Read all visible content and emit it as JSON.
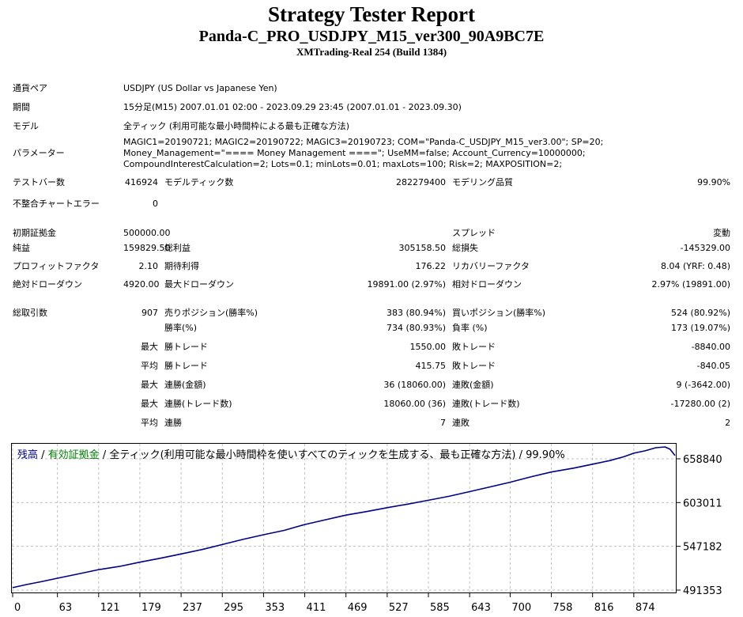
{
  "header": {
    "title": "Strategy Tester Report",
    "ea_name": "Panda-C_PRO_USDJPY_M15_ver300_90A9BC7E",
    "server": "XMTrading-Real 254 (Build 1384)"
  },
  "info": {
    "symbol_label": "通貨ペア",
    "symbol_value": "USDJPY (US Dollar vs Japanese Yen)",
    "period_label": "期間",
    "period_value": "15分足(M15) 2007.01.01 02:00 - 2023.09.29 23:45 (2007.01.01 - 2023.09.30)",
    "model_label": "モデル",
    "model_value": "全ティック (利用可能な最小時間枠による最も正確な方法)",
    "params_label": "パラメーター",
    "params_line1": "MAGIC1=20190721; MAGIC2=20190722; MAGIC3=20190723; COM=\"Panda-C_USDJPY_M15_ver3.00\"; SP=20;",
    "params_line2": "Money_Management=\"==== Money Management ====\"; UseMM=false; Account_Currency=10000000;",
    "params_line3": "CompoundInterestCalculation=2; Lots=0.1; minLots=0.01; maxLots=100; Risk=2; MAXPOSITION=2;"
  },
  "stats": {
    "bars_label": "テストバー数",
    "bars_value": "416924",
    "ticks_label": "モデルティック数",
    "ticks_value": "282279400",
    "quality_label": "モデリング品質",
    "quality_value": "99.90%",
    "mismatch_label": "不整合チャートエラー",
    "mismatch_value": "0",
    "deposit_label": "初期証拠金",
    "deposit_value": "500000.00",
    "spread_label": "スプレッド",
    "spread_value": "変動",
    "net_label": "純益",
    "net_value": "159829.50",
    "gross_profit_label": "総利益",
    "gross_profit_value": "305158.50",
    "gross_loss_label": "総損失",
    "gross_loss_value": "-145329.00",
    "pf_label": "プロフィットファクタ",
    "pf_value": "2.10",
    "expected_label": "期待利得",
    "expected_value": "176.22",
    "recovery_label": "リカバリーファクタ",
    "recovery_value": "8.04 (YRF: 0.48)",
    "abs_dd_label": "絶対ドローダウン",
    "abs_dd_value": "4920.00",
    "max_dd_label": "最大ドローダウン",
    "max_dd_value": "19891.00 (2.97%)",
    "rel_dd_label": "相対ドローダウン",
    "rel_dd_value": "2.97% (19891.00)",
    "total_trades_label": "総取引数",
    "total_trades_value": "907",
    "short_label": "売りポジション(勝率%)",
    "short_value": "383 (80.94%)",
    "long_label": "買いポジション(勝率%)",
    "long_value": "524 (80.92%)",
    "win_rate_label": "勝率(%)",
    "win_rate_value": "734 (80.93%)",
    "loss_rate_label": "負率 (%)",
    "loss_rate_value": "173 (19.07%)",
    "max1": "最大",
    "largest_win_label": "勝トレード",
    "largest_win_value": "1550.00",
    "largest_loss_label": "敗トレード",
    "largest_loss_value": "-8840.00",
    "avg1": "平均",
    "avg_win_label": "勝トレード",
    "avg_win_value": "415.75",
    "avg_loss_label": "敗トレード",
    "avg_loss_value": "-840.05",
    "max2": "最大",
    "max_consec_wins_label": "連勝(金額)",
    "max_consec_wins_value": "36 (18060.00)",
    "max_consec_losses_label": "連敗(金額)",
    "max_consec_losses_value": "9 (-3642.00)",
    "max3": "最大",
    "max_consec_profit_label": "連勝(トレード数)",
    "max_consec_profit_value": "18060.00 (36)",
    "max_consec_loss_label": "連敗(トレード数)",
    "max_consec_loss_value": "-17280.00 (2)",
    "avg2": "平均",
    "avg_consec_wins_label": "連勝",
    "avg_consec_wins_value": "7",
    "avg_consec_losses_label": "連敗",
    "avg_consec_losses_value": "2"
  },
  "chart_title": {
    "part_balance": "残高",
    "sep1": " / ",
    "part_equity": "有効証拠金",
    "sep2": " / ",
    "part_model": "全ティック(利用可能な最小時間枠を使いすべてのティックを生成する、最も正確な方法) / 99.90%"
  },
  "colors": {
    "balance": "#00008b",
    "equity": "#008000",
    "grid": "#c0c0c0"
  },
  "chart_data": {
    "type": "line",
    "title": "残高 / 有効証拠金 / 全ティック(利用可能な最小時間枠を使いすべてのティックを生成する、最も正確な方法) / 99.90%",
    "xlabel": "",
    "ylabel": "",
    "x_ticks": [
      0,
      63,
      121,
      179,
      237,
      295,
      353,
      411,
      469,
      527,
      585,
      643,
      700,
      758,
      816,
      874
    ],
    "y_ticks": [
      491353,
      547182,
      603011,
      658840
    ],
    "xlim": [
      0,
      932
    ],
    "ylim": [
      491353,
      677000
    ],
    "grid": true,
    "series": [
      {
        "name": "残高",
        "points": [
          [
            0,
            494500
          ],
          [
            20,
            498500
          ],
          [
            40,
            502000
          ],
          [
            63,
            506500
          ],
          [
            90,
            511500
          ],
          [
            121,
            517500
          ],
          [
            150,
            521500
          ],
          [
            179,
            527000
          ],
          [
            208,
            532000
          ],
          [
            237,
            537500
          ],
          [
            266,
            543000
          ],
          [
            295,
            549500
          ],
          [
            324,
            556000
          ],
          [
            353,
            562000
          ],
          [
            382,
            567500
          ],
          [
            411,
            575000
          ],
          [
            440,
            581000
          ],
          [
            469,
            587000
          ],
          [
            498,
            591500
          ],
          [
            527,
            596500
          ],
          [
            556,
            601000
          ],
          [
            585,
            606000
          ],
          [
            614,
            611000
          ],
          [
            643,
            617000
          ],
          [
            672,
            623000
          ],
          [
            700,
            629000
          ],
          [
            730,
            636000
          ],
          [
            758,
            642000
          ],
          [
            790,
            647000
          ],
          [
            816,
            652000
          ],
          [
            840,
            656500
          ],
          [
            860,
            661500
          ],
          [
            874,
            666000
          ],
          [
            890,
            669000
          ],
          [
            905,
            673000
          ],
          [
            918,
            674000
          ],
          [
            925,
            671000
          ],
          [
            932,
            663000
          ]
        ]
      }
    ]
  }
}
